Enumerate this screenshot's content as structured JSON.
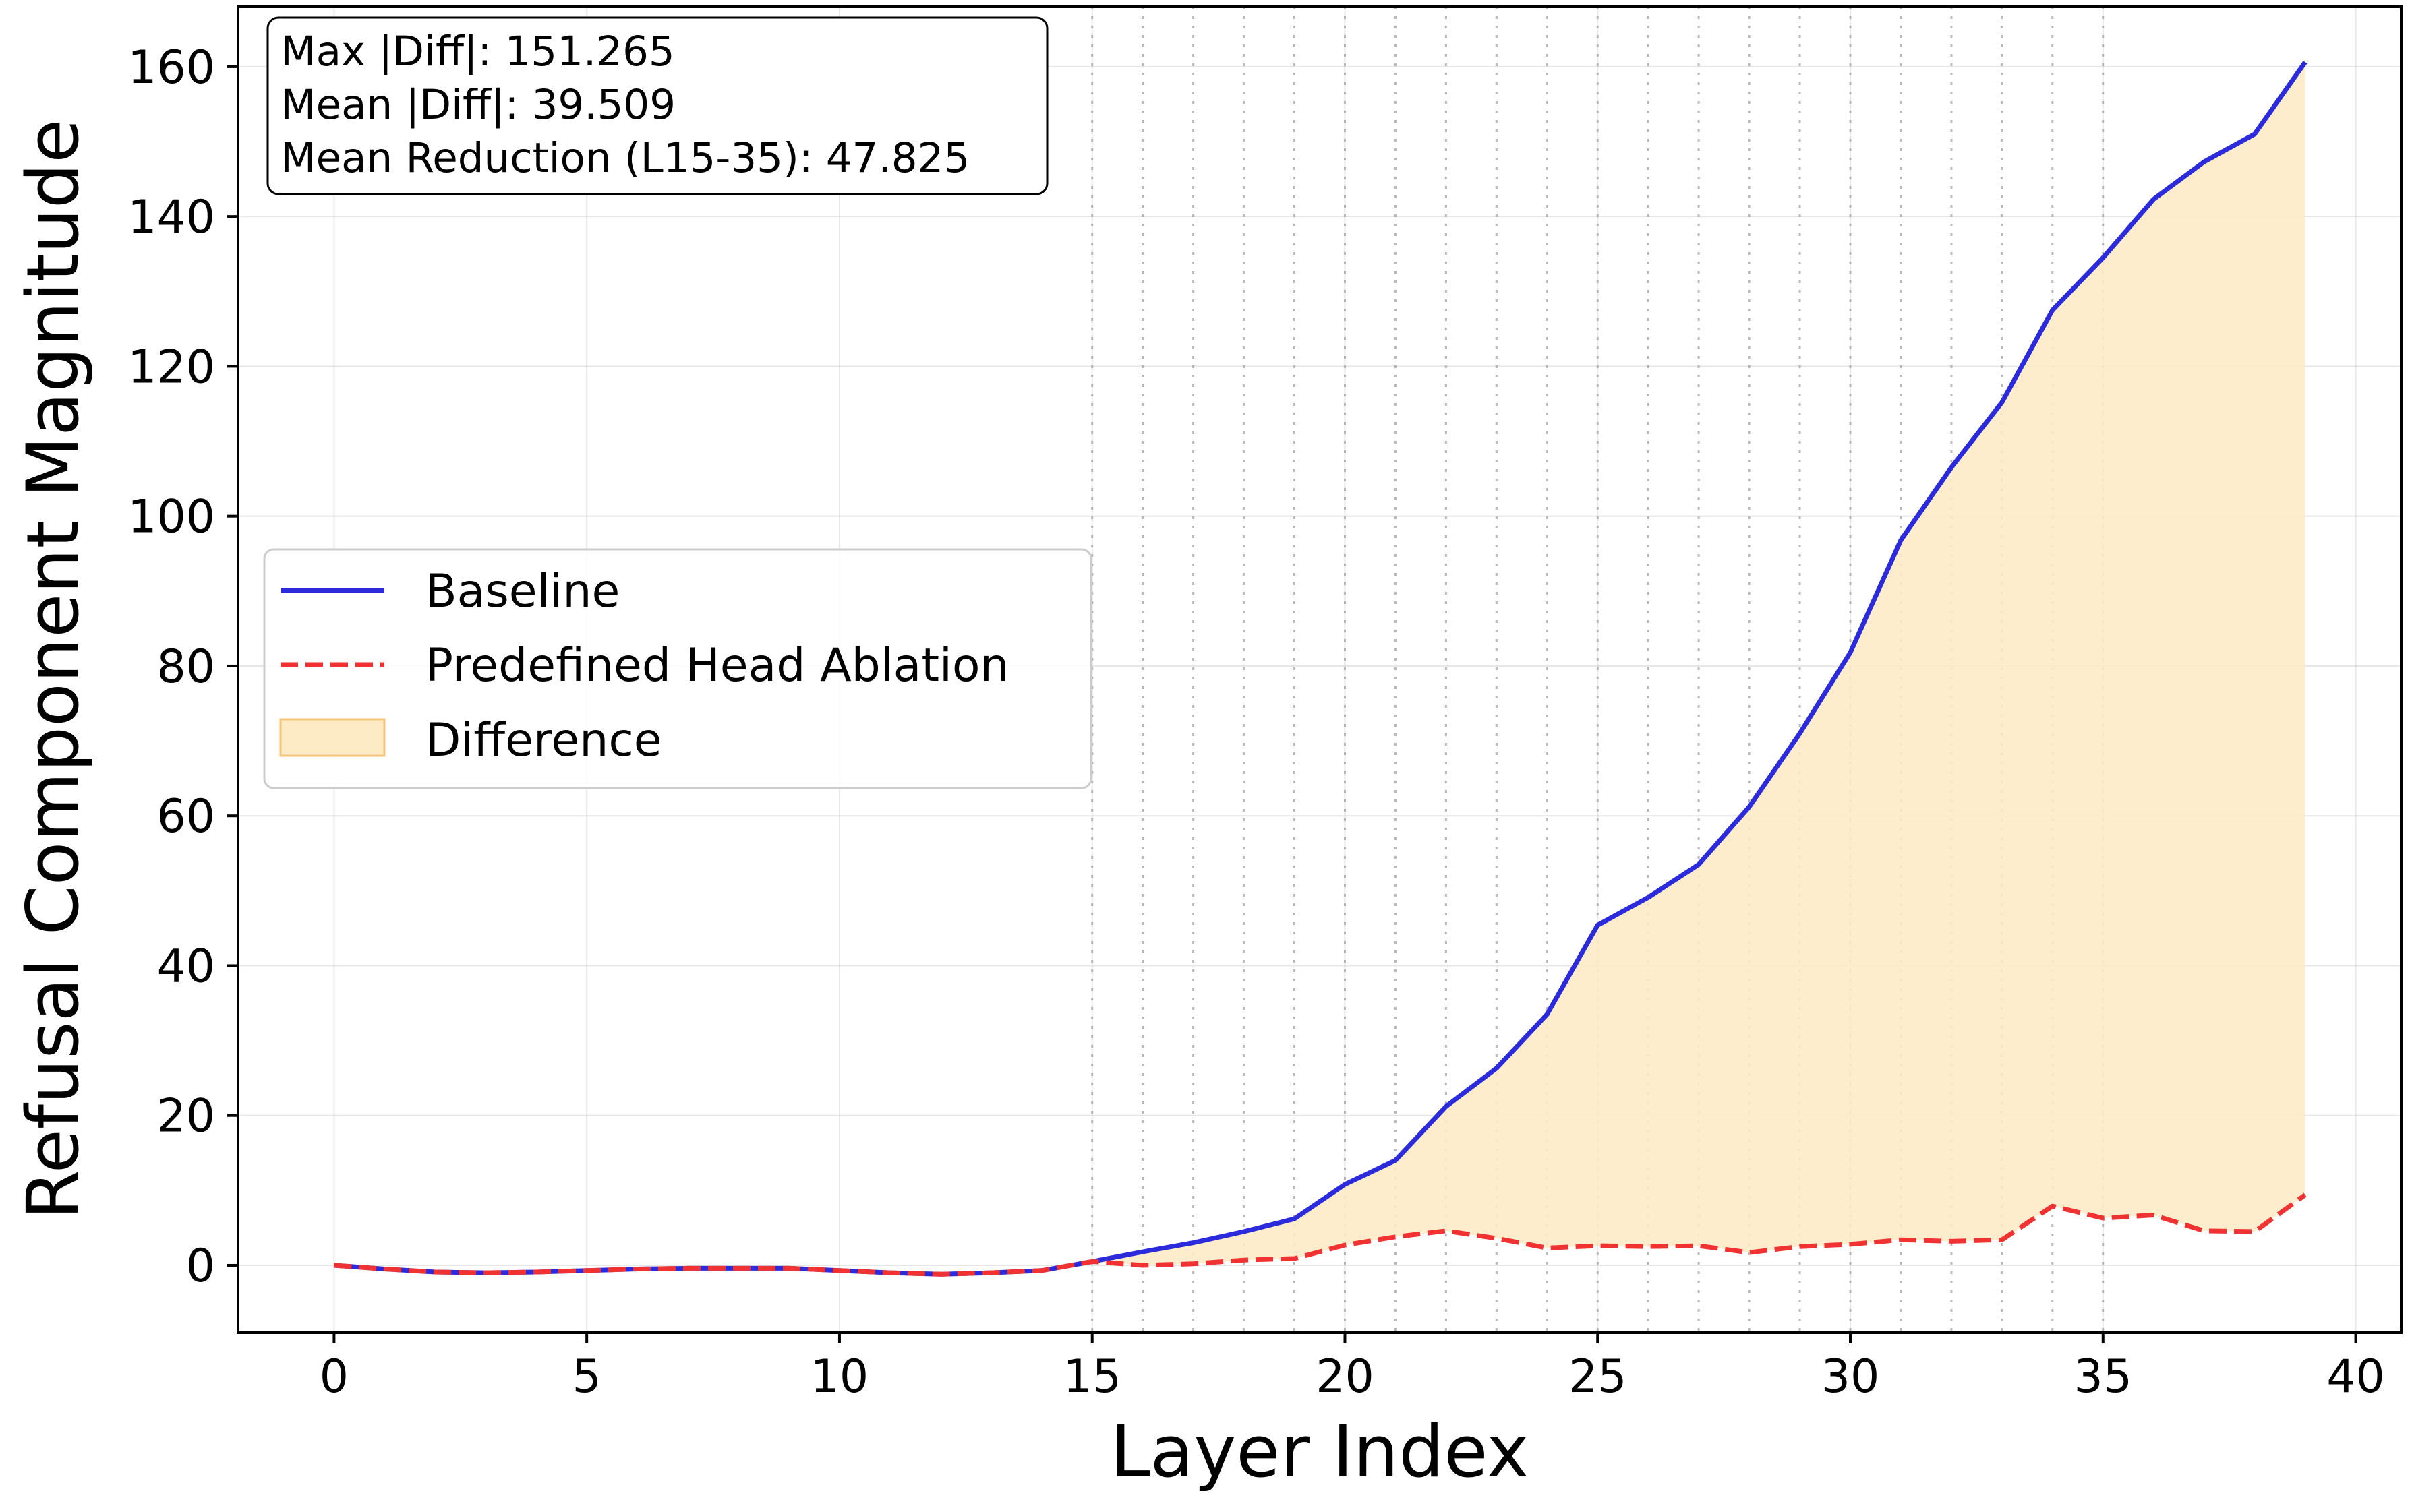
{
  "chart_data": {
    "type": "line",
    "title": "",
    "xlabel": "Layer Index",
    "ylabel": "Refusal Component Magnitude",
    "xlim": [
      -1.9,
      40.9
    ],
    "ylim": [
      -9,
      168
    ],
    "xticks": [
      0,
      5,
      10,
      15,
      20,
      25,
      30,
      35,
      40
    ],
    "yticks": [
      0,
      20,
      40,
      60,
      80,
      100,
      120,
      140,
      160
    ],
    "grid": true,
    "highlight_layers": [
      15,
      16,
      17,
      18,
      19,
      20,
      21,
      22,
      23,
      24,
      25,
      26,
      27,
      28,
      29,
      30,
      31,
      32,
      33,
      34,
      35
    ],
    "x": [
      0,
      1,
      2,
      3,
      4,
      5,
      6,
      7,
      8,
      9,
      10,
      11,
      12,
      13,
      14,
      15,
      16,
      17,
      18,
      19,
      20,
      21,
      22,
      23,
      24,
      25,
      26,
      27,
      28,
      29,
      30,
      31,
      32,
      33,
      34,
      35,
      36,
      37,
      38,
      39
    ],
    "series": [
      {
        "name": "Baseline",
        "color": "#2b2bdc",
        "style": "solid",
        "values": [
          0.0,
          -0.5,
          -0.9,
          -1.0,
          -0.9,
          -0.7,
          -0.5,
          -0.4,
          -0.4,
          -0.4,
          -0.7,
          -1.0,
          -1.2,
          -1.0,
          -0.7,
          0.5,
          1.8,
          3.0,
          4.5,
          6.2,
          10.8,
          14.0,
          21.2,
          26.3,
          33.5,
          45.4,
          49.1,
          53.5,
          61.2,
          71.0,
          81.8,
          96.8,
          106.5,
          115.2,
          127.5,
          134.5,
          142.3,
          147.3,
          151.0,
          160.6
        ]
      },
      {
        "name": "Predefined Head Ablation",
        "color": "#f03232",
        "style": "dashed",
        "values": [
          0.0,
          -0.5,
          -0.9,
          -1.0,
          -0.9,
          -0.7,
          -0.5,
          -0.4,
          -0.4,
          -0.4,
          -0.7,
          -1.0,
          -1.2,
          -1.0,
          -0.7,
          0.5,
          0.0,
          0.2,
          0.7,
          0.9,
          2.7,
          3.8,
          4.6,
          3.6,
          2.3,
          2.6,
          2.5,
          2.6,
          1.7,
          2.5,
          2.8,
          3.4,
          3.2,
          3.4,
          7.9,
          6.3,
          6.7,
          4.6,
          4.5,
          9.4
        ]
      }
    ],
    "fill": {
      "name": "Difference",
      "color": "#fdebc6"
    },
    "legend": {
      "position": "center-left",
      "entries": [
        "Baseline",
        "Predefined Head Ablation",
        "Difference"
      ]
    },
    "stats_box": {
      "position": "top-left",
      "lines": [
        "Max |Diff|: 151.265",
        "Mean |Diff|: 39.509",
        "Mean Reduction (L15-35): 47.825"
      ]
    }
  }
}
